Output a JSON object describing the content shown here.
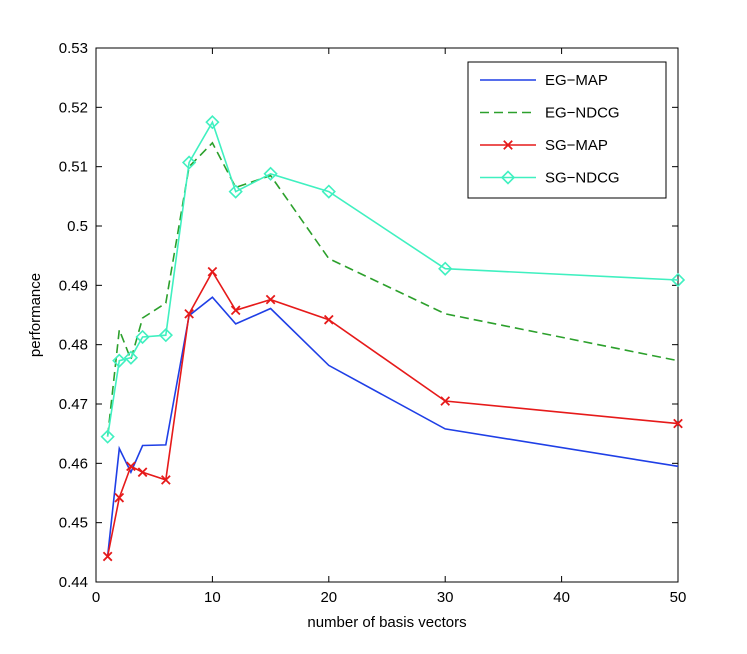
{
  "chart_data": {
    "type": "line",
    "title": "",
    "xlabel": "number of basis vectors",
    "ylabel": "performance",
    "xlim": [
      0,
      50
    ],
    "ylim": [
      0.44,
      0.53
    ],
    "xticks": [
      0,
      10,
      20,
      30,
      40,
      50
    ],
    "xtick_labels": [
      "0",
      "10",
      "20",
      "30",
      "40",
      "50"
    ],
    "yticks": [
      0.44,
      0.45,
      0.46,
      0.47,
      0.48,
      0.49,
      0.5,
      0.51,
      0.52,
      0.53
    ],
    "ytick_labels": [
      "0.44",
      "0.45",
      "0.46",
      "0.47",
      "0.48",
      "0.49",
      "0.5",
      "0.51",
      "0.52",
      "0.53"
    ],
    "grid": false,
    "legend_position": "top-right",
    "x": [
      1,
      2,
      3,
      4,
      6,
      8,
      10,
      12,
      15,
      20,
      30,
      50
    ],
    "series": [
      {
        "name": "EG−MAP",
        "color": "#1f3fe6",
        "style": "solid",
        "marker": "none",
        "values": [
          0.4443,
          0.4625,
          0.4585,
          0.463,
          0.4631,
          0.4849,
          0.488,
          0.4835,
          0.4861,
          0.4765,
          0.4658,
          0.4595
        ]
      },
      {
        "name": "EG−NDCG",
        "color": "#2ca02c",
        "style": "dashed",
        "marker": "none",
        "values": [
          0.4645,
          0.4825,
          0.4775,
          0.4845,
          0.487,
          0.51,
          0.514,
          0.5065,
          0.5085,
          0.4945,
          0.4852,
          0.4773
        ]
      },
      {
        "name": "SG−MAP",
        "color": "#e61a1a",
        "style": "solid",
        "marker": "x",
        "values": [
          0.4443,
          0.4542,
          0.4595,
          0.4585,
          0.4572,
          0.4852,
          0.4923,
          0.4858,
          0.4876,
          0.4842,
          0.4705,
          0.4667
        ]
      },
      {
        "name": "SG−NDCG",
        "color": "#40f0c0",
        "style": "solid",
        "marker": "diamond",
        "values": [
          0.4645,
          0.4773,
          0.4778,
          0.4813,
          0.4816,
          0.5107,
          0.5175,
          0.5058,
          0.5088,
          0.5058,
          0.4928,
          0.4909
        ]
      }
    ]
  }
}
